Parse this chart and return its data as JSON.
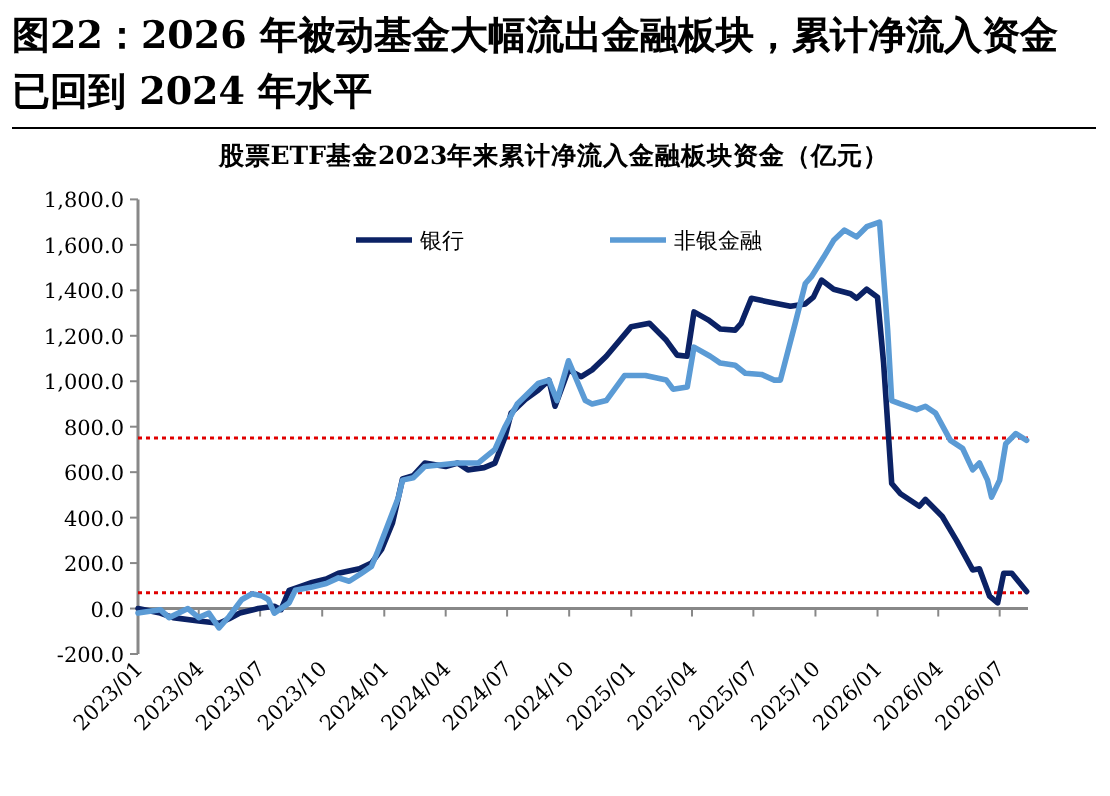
{
  "chart_data": {
    "type": "line",
    "title": "图22：2026 年被动基金大幅流出金融板块，累计净流入资金已回到 2024 年水平",
    "subtitle": "股票ETF基金2023年来累计净流入金融板块资金（亿元）",
    "series": [
      {
        "name": "银行",
        "color": "#0b2265",
        "x": [
          "2023-01-01",
          "2023-02-03",
          "2023-02-22",
          "2023-04-01",
          "2023-05-01",
          "2023-05-16",
          "2023-06-01",
          "2023-06-28",
          "2023-07-22",
          "2023-08-01",
          "2023-08-13",
          "2023-08-28",
          "2023-09-16",
          "2023-10-07",
          "2023-10-25",
          "2023-11-25",
          "2023-12-13",
          "2023-12-28",
          "2024-01-13",
          "2024-01-22",
          "2024-01-28",
          "2024-02-13",
          "2024-03-01",
          "2024-04-01",
          "2024-04-19",
          "2024-05-04",
          "2024-05-28",
          "2024-06-13",
          "2024-06-28",
          "2024-07-07",
          "2024-07-28",
          "2024-08-16",
          "2024-09-01",
          "2024-09-10",
          "2024-09-30",
          "2024-10-19",
          "2024-11-04",
          "2024-11-25",
          "2025-01-01",
          "2025-01-28",
          "2025-02-22",
          "2025-03-10",
          "2025-03-25",
          "2025-04-04",
          "2025-04-25",
          "2025-05-13",
          "2025-06-04",
          "2025-06-13",
          "2025-06-28",
          "2025-07-22",
          "2025-08-25",
          "2025-09-16",
          "2025-09-28",
          "2025-10-10",
          "2025-10-28",
          "2025-11-22",
          "2025-12-01",
          "2025-12-16",
          "2026-01-01",
          "2026-01-10",
          "2026-01-22",
          "2026-02-04",
          "2026-03-04",
          "2026-03-13",
          "2026-04-07",
          "2026-04-28",
          "2026-05-22",
          "2026-06-01",
          "2026-06-16",
          "2026-06-28",
          "2026-07-07",
          "2026-07-19",
          "2026-08-10"
        ],
        "values": [
          0,
          -20,
          -40,
          -55,
          -65,
          -45,
          -20,
          0,
          10,
          -5,
          80,
          95,
          115,
          130,
          155,
          175,
          200,
          260,
          375,
          490,
          570,
          585,
          640,
          625,
          640,
          610,
          620,
          640,
          755,
          860,
          920,
          960,
          1005,
          890,
          1050,
          1020,
          1050,
          1110,
          1240,
          1255,
          1180,
          1115,
          1110,
          1305,
          1270,
          1230,
          1225,
          1255,
          1365,
          1350,
          1330,
          1340,
          1370,
          1445,
          1405,
          1385,
          1365,
          1405,
          1370,
          1080,
          550,
          505,
          450,
          480,
          405,
          300,
          170,
          175,
          55,
          25,
          155,
          155,
          75
        ]
      },
      {
        "name": "非银金融",
        "color": "#5b9bd5",
        "x": [
          "2023-01-01",
          "2023-02-03",
          "2023-02-16",
          "2023-03-16",
          "2023-04-01",
          "2023-04-16",
          "2023-05-01",
          "2023-05-16",
          "2023-06-04",
          "2023-06-19",
          "2023-07-04",
          "2023-07-13",
          "2023-07-22",
          "2023-08-13",
          "2023-08-22",
          "2023-09-16",
          "2023-10-07",
          "2023-10-25",
          "2023-11-10",
          "2023-11-28",
          "2023-12-13",
          "2023-12-22",
          "2024-01-22",
          "2024-01-28",
          "2024-02-13",
          "2024-03-01",
          "2024-04-19",
          "2024-05-19",
          "2024-06-13",
          "2024-06-28",
          "2024-07-16",
          "2024-08-16",
          "2024-09-01",
          "2024-09-13",
          "2024-09-30",
          "2024-10-25",
          "2024-11-04",
          "2024-11-25",
          "2024-12-22",
          "2025-01-22",
          "2025-02-22",
          "2025-03-04",
          "2025-03-25",
          "2025-04-04",
          "2025-04-28",
          "2025-05-13",
          "2025-06-04",
          "2025-06-19",
          "2025-07-13",
          "2025-08-01",
          "2025-08-10",
          "2025-09-01",
          "2025-09-16",
          "2025-09-25",
          "2025-10-13",
          "2025-10-28",
          "2025-11-13",
          "2025-12-01",
          "2025-12-16",
          "2026-01-04",
          "2026-01-16",
          "2026-01-22",
          "2026-02-04",
          "2026-02-28",
          "2026-03-13",
          "2026-03-28",
          "2026-04-19",
          "2026-05-07",
          "2026-05-22",
          "2026-06-01",
          "2026-06-13",
          "2026-06-19",
          "2026-07-01",
          "2026-07-10",
          "2026-07-25",
          "2026-08-10"
        ],
        "values": [
          -20,
          -5,
          -40,
          0,
          -40,
          -20,
          -85,
          -35,
          40,
          65,
          55,
          40,
          -20,
          25,
          80,
          95,
          110,
          135,
          120,
          155,
          185,
          250,
          490,
          565,
          575,
          625,
          640,
          640,
          700,
          800,
          900,
          990,
          1005,
          915,
          1090,
          915,
          900,
          915,
          1025,
          1025,
          1005,
          965,
          975,
          1150,
          1110,
          1080,
          1070,
          1035,
          1030,
          1005,
          1005,
          1255,
          1430,
          1460,
          1545,
          1620,
          1665,
          1635,
          1680,
          1700,
          1225,
          915,
          900,
          875,
          890,
          860,
          740,
          705,
          610,
          640,
          565,
          490,
          565,
          725,
          770,
          740
        ]
      }
    ],
    "xlim": [
      "2023-01-01",
      "2026-08-12"
    ],
    "xticks": [
      {
        "value": "2023-01-01",
        "label": "2023/01"
      },
      {
        "value": "2023-04-01",
        "label": "2023/04"
      },
      {
        "value": "2023-07-01",
        "label": "2023/07"
      },
      {
        "value": "2023-10-01",
        "label": "2023/10"
      },
      {
        "value": "2024-01-01",
        "label": "2024/01"
      },
      {
        "value": "2024-04-01",
        "label": "2024/04"
      },
      {
        "value": "2024-07-01",
        "label": "2024/07"
      },
      {
        "value": "2024-10-01",
        "label": "2024/10"
      },
      {
        "value": "2025-01-01",
        "label": "2025/01"
      },
      {
        "value": "2025-04-01",
        "label": "2025/04"
      },
      {
        "value": "2025-07-01",
        "label": "2025/07"
      },
      {
        "value": "2025-10-01",
        "label": "2025/10"
      },
      {
        "value": "2026-01-01",
        "label": "2026/01"
      },
      {
        "value": "2026-04-01",
        "label": "2026/04"
      },
      {
        "value": "2026-07-01",
        "label": "2026/07"
      }
    ],
    "ylim": [
      -200,
      1800
    ],
    "yticks": [
      {
        "value": -200,
        "label": "-200.0"
      },
      {
        "value": 0,
        "label": "0.0"
      },
      {
        "value": 200,
        "label": "200.0"
      },
      {
        "value": 400,
        "label": "400.0"
      },
      {
        "value": 600,
        "label": "600.0"
      },
      {
        "value": 800,
        "label": "800.0"
      },
      {
        "value": 1000,
        "label": "1,000.0"
      },
      {
        "value": 1200,
        "label": "1,200.0"
      },
      {
        "value": 1400,
        "label": "1,400.0"
      },
      {
        "value": 1600,
        "label": "1,600.0"
      },
      {
        "value": 1800,
        "label": "1,800.0"
      }
    ],
    "ref_lines": [
      {
        "axis": "y",
        "value": 750,
        "color": "#e00000",
        "line_style": "dotted"
      },
      {
        "axis": "y",
        "value": 70,
        "color": "#e00000",
        "line_style": "dotted"
      }
    ],
    "grid": false,
    "legend": "top",
    "marker": "none",
    "line_style": "solid"
  }
}
